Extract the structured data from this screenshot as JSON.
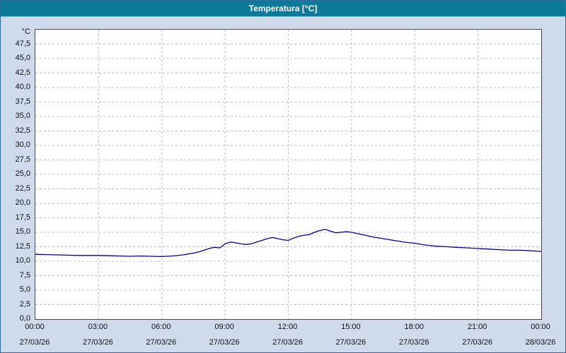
{
  "title": "Temperatura [°C]",
  "colors": {
    "titlebar_bg": "#0c7b99",
    "titlebar_text": "#ffffff",
    "page_bg": "#cfdaec",
    "plot_bg": "#ffffff",
    "grid": "#bcbcbc",
    "line": "#000099"
  },
  "y_axis": {
    "unit": "°C",
    "tick_labels": [
      "47,5",
      "45,0",
      "42,5",
      "40,0",
      "37,5",
      "35,0",
      "32,5",
      "30,0",
      "27,5",
      "25,0",
      "22,5",
      "20,0",
      "17,5",
      "15,0",
      "12,5",
      "10,0",
      "7,5",
      "5,0",
      "2,5",
      "0,0"
    ]
  },
  "x_axis": {
    "time_labels": [
      "00:00",
      "03:00",
      "06:00",
      "09:00",
      "12:00",
      "15:00",
      "18:00",
      "21:00",
      "00:00"
    ],
    "date_labels": [
      "27/03/26",
      "27/03/26",
      "27/03/26",
      "27/03/26",
      "27/03/26",
      "27/03/26",
      "27/03/26",
      "27/03/26",
      "28/03/26"
    ]
  },
  "chart_data": {
    "type": "line",
    "title": "Temperatura [°C]",
    "xlabel": "",
    "ylabel": "°C",
    "x_unit": "hours",
    "xlim": [
      0,
      24
    ],
    "ylim": [
      0,
      50
    ],
    "y_tick_step": 2.5,
    "x_tick_step_hours": 3,
    "grid": true,
    "legend": "none",
    "series_name": "Temperatura",
    "points": [
      [
        0,
        11.2
      ],
      [
        0.5,
        11.15
      ],
      [
        1,
        11.1
      ],
      [
        1.5,
        11.05
      ],
      [
        2,
        11.0
      ],
      [
        2.5,
        11.0
      ],
      [
        3,
        11.0
      ],
      [
        3.5,
        10.95
      ],
      [
        4,
        10.9
      ],
      [
        4.5,
        10.85
      ],
      [
        5,
        10.9
      ],
      [
        5.5,
        10.85
      ],
      [
        6,
        10.8
      ],
      [
        6.5,
        10.9
      ],
      [
        7,
        11.1
      ],
      [
        7.5,
        11.4
      ],
      [
        7.75,
        11.6
      ],
      [
        8,
        11.9
      ],
      [
        8.25,
        12.2
      ],
      [
        8.5,
        12.4
      ],
      [
        8.75,
        12.3
      ],
      [
        9,
        13.0
      ],
      [
        9.25,
        13.3
      ],
      [
        9.5,
        13.2
      ],
      [
        9.75,
        13.0
      ],
      [
        10,
        12.9
      ],
      [
        10.25,
        13.0
      ],
      [
        10.5,
        13.3
      ],
      [
        10.75,
        13.6
      ],
      [
        11,
        13.9
      ],
      [
        11.25,
        14.1
      ],
      [
        11.5,
        13.9
      ],
      [
        11.75,
        13.7
      ],
      [
        12,
        13.6
      ],
      [
        12.25,
        14.0
      ],
      [
        12.5,
        14.3
      ],
      [
        12.75,
        14.5
      ],
      [
        13,
        14.6
      ],
      [
        13.25,
        15.0
      ],
      [
        13.5,
        15.3
      ],
      [
        13.75,
        15.5
      ],
      [
        14,
        15.2
      ],
      [
        14.25,
        14.9
      ],
      [
        14.5,
        15.0
      ],
      [
        14.75,
        15.1
      ],
      [
        15,
        15.0
      ],
      [
        15.25,
        14.8
      ],
      [
        15.5,
        14.6
      ],
      [
        15.75,
        14.4
      ],
      [
        16,
        14.2
      ],
      [
        16.5,
        13.9
      ],
      [
        17,
        13.6
      ],
      [
        17.5,
        13.3
      ],
      [
        18,
        13.1
      ],
      [
        18.5,
        12.8
      ],
      [
        19,
        12.6
      ],
      [
        19.5,
        12.5
      ],
      [
        20,
        12.4
      ],
      [
        20.5,
        12.3
      ],
      [
        21,
        12.2
      ],
      [
        21.5,
        12.1
      ],
      [
        22,
        12.0
      ],
      [
        22.5,
        11.9
      ],
      [
        23,
        11.9
      ],
      [
        23.5,
        11.8
      ],
      [
        24,
        11.7
      ]
    ]
  }
}
